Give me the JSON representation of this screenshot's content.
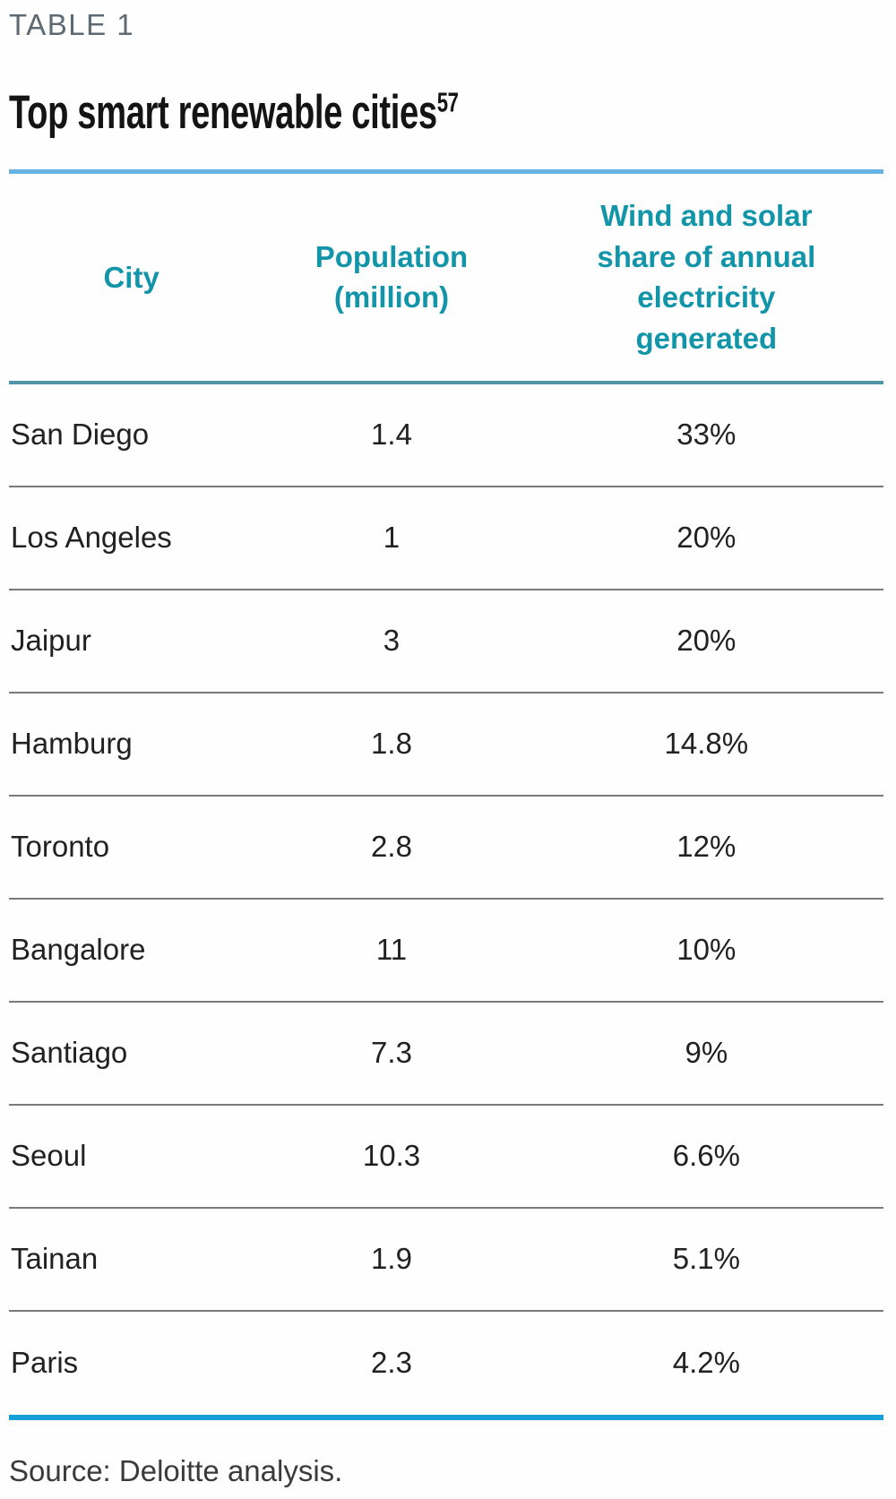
{
  "table_label": "TABLE 1",
  "title": "Top smart renewable cities",
  "title_footnote": "57",
  "columns": [
    "City",
    "Population (million)",
    "Wind and solar share of annual electricity generated"
  ],
  "rows": [
    {
      "city": "San Diego",
      "population": "1.4",
      "share": "33%"
    },
    {
      "city": "Los Angeles",
      "population": "1",
      "share": "20%"
    },
    {
      "city": "Jaipur",
      "population": "3",
      "share": "20%"
    },
    {
      "city": "Hamburg",
      "population": "1.8",
      "share": "14.8%"
    },
    {
      "city": "Toronto",
      "population": "2.8",
      "share": "12%"
    },
    {
      "city": "Bangalore",
      "population": "11",
      "share": "10%"
    },
    {
      "city": "Santiago",
      "population": "7.3",
      "share": "9%"
    },
    {
      "city": "Seoul",
      "population": "10.3",
      "share": "6.6%"
    },
    {
      "city": "Tainan",
      "population": "1.9",
      "share": "5.1%"
    },
    {
      "city": "Paris",
      "population": "2.3",
      "share": "4.2%"
    }
  ],
  "source": "Source: Deloitte analysis.",
  "colors": {
    "header_text_teal": "#1295a9",
    "top_rule_blue": "#66b2e2",
    "header_rule_teal": "#4f93a6",
    "row_divider_gray": "#7a7a7a",
    "bottom_rule_blue": "#149fd9",
    "label_gray": "#5d6a74",
    "body_text": "#212121"
  },
  "chart_data": {
    "type": "table",
    "title": "Top smart renewable cities",
    "footnote_marker": "57",
    "columns": [
      "City",
      "Population (million)",
      "Wind and solar share of annual electricity generated"
    ],
    "categories": [
      "San Diego",
      "Los Angeles",
      "Jaipur",
      "Hamburg",
      "Toronto",
      "Bangalore",
      "Santiago",
      "Seoul",
      "Tainan",
      "Paris"
    ],
    "series": [
      {
        "name": "Population (million)",
        "values": [
          1.4,
          1,
          3,
          1.8,
          2.8,
          11,
          7.3,
          10.3,
          1.9,
          2.3
        ]
      },
      {
        "name": "Wind and solar share of annual electricity generated (%)",
        "values": [
          33,
          20,
          20,
          14.8,
          12,
          10,
          9,
          6.6,
          5.1,
          4.2
        ]
      }
    ],
    "source": "Source: Deloitte analysis."
  }
}
